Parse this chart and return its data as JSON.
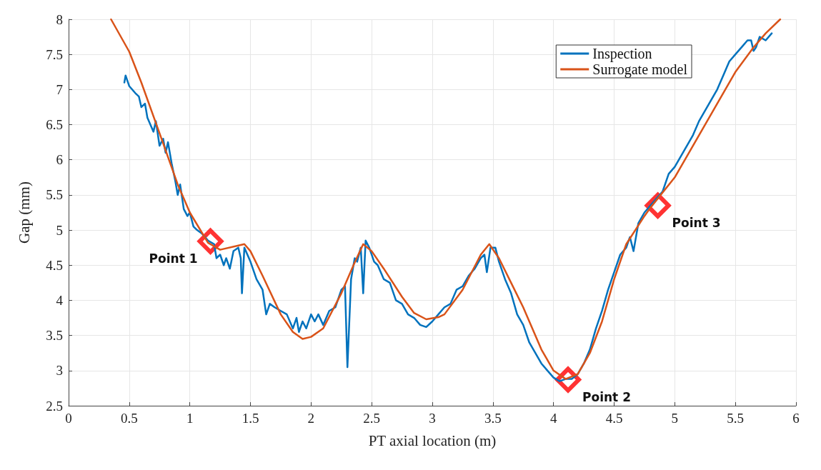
{
  "chart_data": {
    "type": "line",
    "xlabel": "PT axial location (m)",
    "ylabel": "Gap (mm)",
    "xlim": [
      0,
      6
    ],
    "xticks": [
      0,
      0.5,
      1,
      1.5,
      2,
      2.5,
      3,
      3.5,
      4,
      4.5,
      5,
      5.5,
      6
    ],
    "ylim": [
      2.5,
      8
    ],
    "yticks": [
      2.5,
      3,
      3.5,
      4,
      4.5,
      5,
      5.5,
      6,
      6.5,
      7,
      7.5,
      8
    ],
    "grid": true,
    "legend": "top right",
    "line_style": "solid",
    "series": [
      {
        "name": "Inspection",
        "color": "#0072bd",
        "marker": "none",
        "x": [
          0.46,
          0.47,
          0.5,
          0.55,
          0.58,
          0.6,
          0.63,
          0.65,
          0.7,
          0.72,
          0.75,
          0.78,
          0.8,
          0.82,
          0.85,
          0.88,
          0.9,
          0.92,
          0.95,
          0.98,
          1.0,
          1.03,
          1.06,
          1.1,
          1.15,
          1.2,
          1.22,
          1.25,
          1.28,
          1.3,
          1.33,
          1.36,
          1.4,
          1.42,
          1.43,
          1.45,
          1.5,
          1.55,
          1.6,
          1.63,
          1.66,
          1.7,
          1.75,
          1.8,
          1.85,
          1.88,
          1.9,
          1.93,
          1.96,
          2.0,
          2.03,
          2.06,
          2.1,
          2.15,
          2.2,
          2.25,
          2.28,
          2.3,
          2.33,
          2.36,
          2.38,
          2.41,
          2.43,
          2.45,
          2.48,
          2.52,
          2.55,
          2.6,
          2.65,
          2.7,
          2.75,
          2.8,
          2.85,
          2.9,
          2.95,
          3.0,
          3.05,
          3.1,
          3.15,
          3.2,
          3.25,
          3.3,
          3.35,
          3.4,
          3.43,
          3.45,
          3.48,
          3.52,
          3.55,
          3.6,
          3.65,
          3.7,
          3.75,
          3.8,
          3.85,
          3.9,
          3.95,
          4.0,
          4.05,
          4.1,
          4.15,
          4.2,
          4.25,
          4.3,
          4.35,
          4.4,
          4.45,
          4.5,
          4.55,
          4.6,
          4.63,
          4.66,
          4.7,
          4.75,
          4.8,
          4.85,
          4.9,
          4.95,
          5.0,
          5.05,
          5.1,
          5.15,
          5.2,
          5.25,
          5.3,
          5.35,
          5.4,
          5.45,
          5.5,
          5.55,
          5.6,
          5.63,
          5.65,
          5.67,
          5.7,
          5.75,
          5.8
        ],
        "values": [
          7.1,
          7.2,
          7.05,
          6.95,
          6.9,
          6.75,
          6.8,
          6.6,
          6.4,
          6.55,
          6.2,
          6.3,
          6.1,
          6.25,
          5.95,
          5.7,
          5.5,
          5.65,
          5.3,
          5.2,
          5.25,
          5.05,
          5.0,
          4.95,
          4.85,
          4.8,
          4.6,
          4.65,
          4.5,
          4.6,
          4.45,
          4.7,
          4.75,
          4.6,
          4.1,
          4.75,
          4.55,
          4.3,
          4.15,
          3.8,
          3.95,
          3.9,
          3.85,
          3.8,
          3.6,
          3.75,
          3.55,
          3.7,
          3.6,
          3.8,
          3.7,
          3.8,
          3.65,
          3.85,
          3.9,
          4.15,
          4.2,
          3.05,
          4.3,
          4.6,
          4.55,
          4.75,
          4.1,
          4.85,
          4.75,
          4.55,
          4.5,
          4.3,
          4.25,
          4.0,
          3.95,
          3.8,
          3.75,
          3.65,
          3.62,
          3.7,
          3.8,
          3.9,
          3.95,
          4.15,
          4.2,
          4.35,
          4.45,
          4.6,
          4.65,
          4.4,
          4.75,
          4.75,
          4.55,
          4.3,
          4.1,
          3.8,
          3.65,
          3.4,
          3.25,
          3.1,
          3.0,
          2.9,
          2.85,
          2.88,
          2.88,
          2.95,
          3.1,
          3.3,
          3.6,
          3.85,
          4.15,
          4.4,
          4.65,
          4.75,
          4.9,
          4.7,
          5.1,
          5.25,
          5.35,
          5.45,
          5.55,
          5.8,
          5.9,
          6.05,
          6.2,
          6.35,
          6.55,
          6.7,
          6.85,
          7.0,
          7.2,
          7.4,
          7.5,
          7.6,
          7.7,
          7.7,
          7.55,
          7.6,
          7.75,
          7.7,
          7.8
        ]
      },
      {
        "name": "Surrogate model",
        "color": "#d95319",
        "marker": "none",
        "x": [
          0.35,
          0.5,
          0.6,
          0.75,
          0.9,
          1.0,
          1.15,
          1.25,
          1.4,
          1.45,
          1.5,
          1.6,
          1.75,
          1.85,
          1.93,
          2.0,
          2.1,
          2.25,
          2.35,
          2.43,
          2.5,
          2.6,
          2.75,
          2.85,
          2.95,
          3.05,
          3.1,
          3.25,
          3.4,
          3.47,
          3.55,
          3.65,
          3.75,
          3.9,
          4.0,
          4.1,
          4.2,
          4.3,
          4.4,
          4.5,
          4.6,
          4.75,
          4.8,
          5.0,
          5.1,
          5.25,
          5.4,
          5.5,
          5.65,
          5.75,
          5.87
        ],
        "values": [
          8.0,
          7.54,
          7.1,
          6.38,
          5.65,
          5.25,
          4.82,
          4.72,
          4.78,
          4.8,
          4.7,
          4.35,
          3.8,
          3.55,
          3.45,
          3.48,
          3.6,
          4.1,
          4.5,
          4.8,
          4.7,
          4.45,
          4.05,
          3.82,
          3.73,
          3.76,
          3.8,
          4.15,
          4.65,
          4.8,
          4.6,
          4.25,
          3.9,
          3.3,
          3.0,
          2.88,
          2.95,
          3.25,
          3.7,
          4.3,
          4.8,
          5.2,
          5.32,
          5.75,
          6.05,
          6.5,
          6.95,
          7.25,
          7.6,
          7.8,
          8.0
        ]
      },
      {
        "type": "scatter",
        "color": "#ff0000",
        "marker": "diamond",
        "x": [
          1.17,
          4.12,
          4.86
        ],
        "values": [
          4.84,
          2.87,
          5.35
        ]
      }
    ],
    "annotations": [
      {
        "text": "Point 1",
        "x": 1.17,
        "y": 4.84
      },
      {
        "text": "Point 2",
        "x": 4.12,
        "y": 2.87
      },
      {
        "text": "Point 3",
        "x": 4.86,
        "y": 5.35
      }
    ]
  }
}
